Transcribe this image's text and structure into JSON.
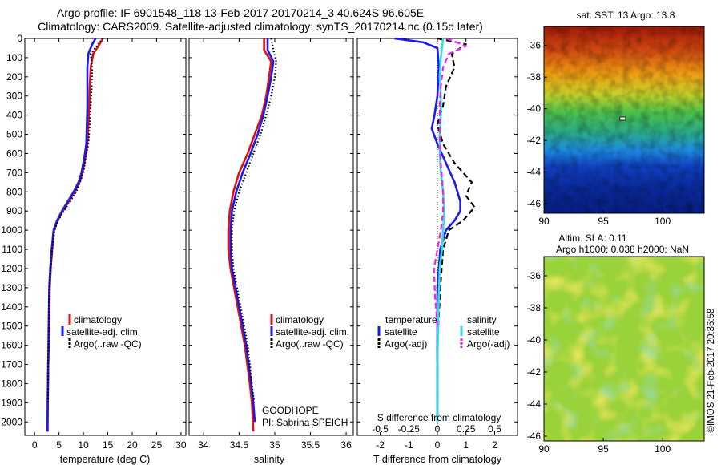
{
  "header": {
    "line1": "Argo profile: IF 6901548_118 13-Feb-2017 20170214_3 40.624S 96.605E",
    "line2": "Climatology: CARS2009. Satellite-adjusted climatology: synTS_20170214.nc (0.15d later)"
  },
  "footer_vertical": "©IMOS 21-Feb-2017 20:36:58",
  "colors": {
    "climatology": "#dd1111",
    "satellite": "#1a1aee",
    "argo": "#000000",
    "salinity_satellite": "#33dddd",
    "salinity_argo": "#ee22ee"
  },
  "chart_data": [
    {
      "type": "line",
      "panel": "temperature-profile",
      "xlabel": "temperature (deg C)",
      "xlim": [
        -2,
        31
      ],
      "xticks": [
        0,
        5,
        10,
        15,
        20,
        25,
        30
      ],
      "ylim": [
        0,
        2070
      ],
      "yticks": [
        0,
        100,
        200,
        300,
        400,
        500,
        600,
        700,
        800,
        900,
        1000,
        1100,
        1200,
        1300,
        1400,
        1500,
        1600,
        1700,
        1800,
        1900,
        2000
      ],
      "legend": [
        "climatology",
        "satellite-adj. clim.",
        "Argo(..raw -QC)"
      ],
      "legend_placement": "lower-right",
      "series": [
        {
          "name": "climatology",
          "style": "solid",
          "color": "#dd1111",
          "x": [
            14.0,
            13.3,
            12.0,
            11.5,
            11.3,
            11.2,
            11.0,
            10.8,
            10.4,
            9.8,
            9.2,
            8.2,
            7.0,
            5.8,
            4.7,
            4.0,
            3.6,
            3.3,
            3.1,
            3.0,
            2.8,
            2.7,
            2.65
          ],
          "y": [
            0,
            30,
            80,
            150,
            250,
            350,
            450,
            550,
            620,
            700,
            750,
            800,
            850,
            900,
            950,
            1000,
            1100,
            1200,
            1300,
            1500,
            1700,
            1900,
            2050
          ]
        },
        {
          "name": "satellite-adj. clim.",
          "style": "solid",
          "color": "#1a1aee",
          "x": [
            12.5,
            11.8,
            11.0,
            10.8,
            10.8,
            10.8,
            10.7,
            10.6,
            10.2,
            9.6,
            9.0,
            8.0,
            6.8,
            5.6,
            4.6,
            3.9,
            3.5,
            3.2,
            3.0,
            2.9,
            2.8,
            2.7,
            2.65
          ],
          "y": [
            0,
            30,
            80,
            150,
            250,
            350,
            450,
            550,
            620,
            700,
            750,
            800,
            850,
            900,
            950,
            1000,
            1100,
            1200,
            1300,
            1500,
            1700,
            1900,
            2050
          ]
        },
        {
          "name": "Argo(..raw -QC)",
          "style": "dotted",
          "color": "#000000",
          "x": [
            14.0,
            13.0,
            11.5,
            11.8,
            11.7,
            11.5,
            11.3,
            11.0,
            10.5,
            10.0,
            9.3,
            8.5,
            7.3,
            6.0,
            4.8,
            4.1,
            3.6,
            3.3,
            3.0,
            2.9,
            2.8,
            2.7
          ],
          "y": [
            0,
            30,
            80,
            150,
            250,
            350,
            450,
            550,
            620,
            700,
            750,
            800,
            850,
            900,
            950,
            1000,
            1100,
            1200,
            1300,
            1500,
            1700,
            1900
          ]
        }
      ]
    },
    {
      "type": "line",
      "panel": "salinity-profile",
      "xlabel": "salinity",
      "xlim": [
        33.8,
        36.1
      ],
      "xticks": [
        34,
        34.5,
        35,
        35.5,
        36
      ],
      "xticklabels": [
        "34",
        "34.5",
        "35",
        "35.5",
        "36"
      ],
      "ylim": [
        0,
        2070
      ],
      "legend": [
        "climatology",
        "satellite-adj. clim.",
        "Argo(..raw -QC)"
      ],
      "legend_placement": "lower-right",
      "annotation": [
        "GOODHOPE",
        "PI: Sabrina SPEICH"
      ],
      "series": [
        {
          "name": "climatology",
          "style": "solid",
          "color": "#dd1111",
          "x": [
            34.85,
            34.85,
            34.95,
            34.92,
            34.88,
            34.82,
            34.72,
            34.62,
            34.5,
            34.42,
            34.37,
            34.35,
            34.35,
            34.38,
            34.48,
            34.58,
            34.65,
            34.68,
            34.7
          ],
          "y": [
            0,
            60,
            120,
            200,
            300,
            400,
            500,
            600,
            700,
            800,
            900,
            1000,
            1100,
            1200,
            1400,
            1600,
            1800,
            1900,
            2050
          ]
        },
        {
          "name": "satellite-adj. clim.",
          "style": "solid",
          "color": "#1a1aee",
          "x": [
            34.9,
            34.9,
            34.98,
            34.95,
            34.9,
            34.84,
            34.76,
            34.66,
            34.55,
            34.46,
            34.4,
            34.38,
            34.38,
            34.4,
            34.5,
            34.6,
            34.67,
            34.7,
            34.72
          ],
          "y": [
            0,
            60,
            120,
            200,
            300,
            400,
            500,
            600,
            700,
            800,
            900,
            1000,
            1100,
            1200,
            1400,
            1600,
            1800,
            1900,
            2000
          ]
        },
        {
          "name": "Argo(..raw -QC)",
          "style": "dotted",
          "color": "#000000",
          "x": [
            34.95,
            34.98,
            35.02,
            35.0,
            34.95,
            34.88,
            34.8,
            34.7,
            34.6,
            34.5,
            34.43,
            34.4,
            34.4,
            34.42,
            34.52,
            34.62,
            34.68,
            34.71
          ],
          "y": [
            0,
            60,
            120,
            200,
            300,
            400,
            500,
            600,
            700,
            800,
            900,
            1000,
            1100,
            1200,
            1400,
            1600,
            1800,
            1900
          ]
        }
      ]
    },
    {
      "type": "line",
      "panel": "difference-profile",
      "xlabel": "T difference from climatology",
      "xlabel_top": "S difference from climatology",
      "xlim": [
        -2.8,
        2.8
      ],
      "xticks": [
        -2,
        -1,
        0,
        1,
        2
      ],
      "s_xticks": [
        -0.5,
        -0.25,
        0,
        0.25,
        0.5
      ],
      "s_xticklabels": [
        "-0.5",
        "-0.25",
        "0",
        "0.25",
        "0.5"
      ],
      "ylim": [
        0,
        2070
      ],
      "legend_titles": [
        "temperature",
        "salinity"
      ],
      "legend": [
        "satellite",
        "Argo(-adj)",
        "satellite",
        "Argo(-adj)"
      ],
      "legend_placement": "lower",
      "series": [
        {
          "name": "satellite",
          "group": "temperature",
          "style": "solid",
          "color": "#1a1aee",
          "x": [
            -1.5,
            -0.5,
            0.0,
            0.05,
            0.0,
            -0.1,
            -0.2,
            0.0,
            0.3,
            0.6,
            0.8,
            0.8,
            0.6,
            0.3,
            0.1,
            0.0,
            0.0,
            0.0
          ],
          "y": [
            0,
            20,
            50,
            150,
            300,
            400,
            470,
            550,
            650,
            750,
            850,
            900,
            950,
            1000,
            1100,
            1300,
            1600,
            2000
          ]
        },
        {
          "name": "Argo(-adj)",
          "group": "temperature",
          "style": "dashed",
          "color": "#000000",
          "x": [
            0.0,
            1.0,
            0.5,
            0.6,
            0.3,
            0.2,
            0.0,
            0.2,
            0.6,
            1.2,
            1.0,
            1.3,
            0.9,
            0.4,
            0.2,
            0.1,
            0.0,
            0.0
          ],
          "y": [
            0,
            30,
            80,
            150,
            250,
            350,
            450,
            550,
            650,
            750,
            820,
            880,
            950,
            1000,
            1100,
            1300,
            1600,
            1900
          ]
        },
        {
          "name": "satellite",
          "group": "salinity",
          "style": "solid",
          "color": "#33dddd",
          "x": [
            0.05,
            0.03,
            0.02,
            0.03,
            0.03,
            0.02,
            0.02,
            0.03,
            0.05,
            0.06,
            0.05,
            0.04,
            0.02,
            0.01,
            0.0,
            0.0
          ],
          "y": [
            0,
            100,
            200,
            300,
            400,
            500,
            600,
            700,
            800,
            900,
            1000,
            1100,
            1200,
            1400,
            1700,
            2000
          ]
        },
        {
          "name": "Argo(-adj)",
          "group": "salinity",
          "style": "dashed",
          "color": "#ee22ee",
          "x": [
            0.08,
            0.25,
            0.1,
            0.05,
            0.03,
            0.02,
            0.02,
            0.03,
            0.05,
            0.05,
            0.03,
            0.0,
            -0.03,
            -0.02,
            0.0
          ],
          "y": [
            0,
            40,
            80,
            150,
            250,
            350,
            500,
            650,
            800,
            900,
            1000,
            1100,
            1200,
            1350,
            1500
          ]
        }
      ]
    },
    {
      "type": "heatmap",
      "panel": "sst-map",
      "title": "sat. SST: 13 Argo: 13.8",
      "xlim": [
        90,
        103.5
      ],
      "ylim": [
        -46.6,
        -34.8
      ],
      "xticks": [
        90,
        95,
        100
      ],
      "yticks": [
        -36,
        -38,
        -40,
        -42,
        -44,
        -46
      ],
      "argo_position": {
        "lon": 96.605,
        "lat": -40.624
      }
    },
    {
      "type": "heatmap",
      "panel": "sla-map",
      "title_lines": [
        "Altim. SLA: 0.11",
        "Argo h1000: 0.038 h2000: NaN"
      ],
      "xlim": [
        90,
        103.5
      ],
      "ylim": [
        -46.3,
        -34.8
      ],
      "xticks": [
        90,
        95,
        100
      ],
      "yticks": [
        -36,
        -38,
        -40,
        -42,
        -44,
        -46
      ]
    }
  ]
}
